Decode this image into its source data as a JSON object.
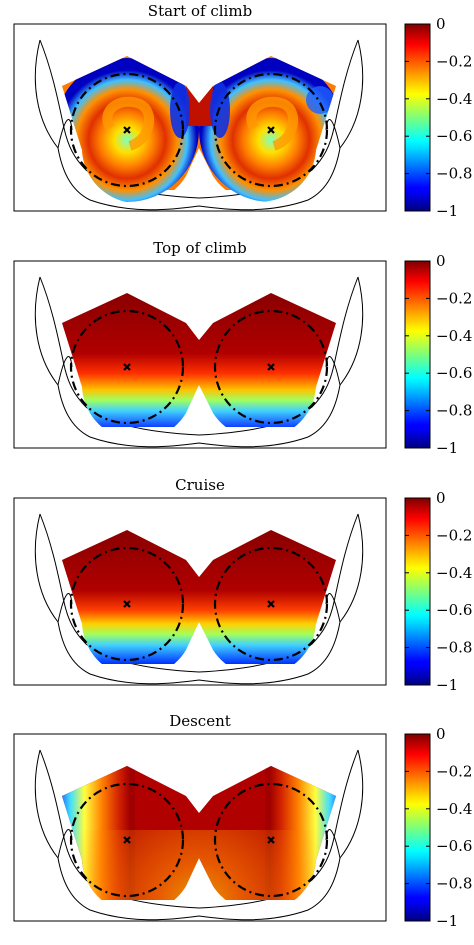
{
  "panels": [
    {
      "title": "Start of climb",
      "pattern": "swirl"
    },
    {
      "title": "Top of climb",
      "pattern": "vertical"
    },
    {
      "title": "Cruise",
      "pattern": "vertical_strong"
    },
    {
      "title": "Descent",
      "pattern": "side"
    }
  ],
  "colorbar": {
    "ticks": [
      "0",
      "−0.2",
      "−0.4",
      "−0.6",
      "−0.8",
      "−1"
    ],
    "min": -1,
    "max": 0,
    "colormap": "jet"
  },
  "markers": {
    "symbol": "x",
    "color": "#000000"
  },
  "colors": {
    "outline": "#000000",
    "background": "#ffffff"
  }
}
